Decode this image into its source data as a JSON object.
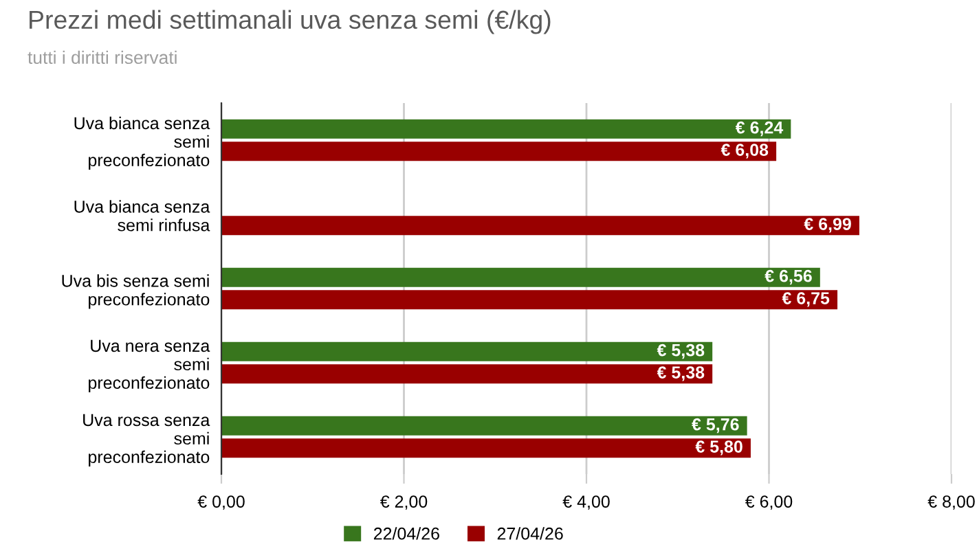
{
  "chart_data": {
    "type": "bar",
    "orientation": "horizontal",
    "title": "Prezzi medi settimanali uva senza semi (€/kg)",
    "subtitle": "tutti i diritti riservati",
    "categories": [
      "Uva bianca senza\nsemi\npreconfezionato",
      "Uva bianca senza\nsemi rinfusa",
      "Uva bis senza semi\npreconfezionato",
      "Uva nera senza\nsemi\npreconfezionato",
      "Uva rossa senza\nsemi\npreconfezionato"
    ],
    "series": [
      {
        "name": "22/04/26",
        "color": "#38761d",
        "values": [
          6.24,
          null,
          6.56,
          5.38,
          5.76
        ],
        "value_labels": [
          "€ 6,24",
          null,
          "€ 6,56",
          "€ 5,38",
          "€ 5,76"
        ]
      },
      {
        "name": "27/04/26",
        "color": "#990000",
        "values": [
          6.08,
          6.99,
          6.75,
          5.38,
          5.8
        ],
        "value_labels": [
          "€ 6,08",
          "€ 6,99",
          "€ 6,75",
          "€ 5,38",
          "€ 5,80"
        ]
      }
    ],
    "xlim": [
      0,
      8
    ],
    "xticks": [
      {
        "value": 0,
        "label": "€ 0,00"
      },
      {
        "value": 2,
        "label": "€ 2,00"
      },
      {
        "value": 4,
        "label": "€ 4,00"
      },
      {
        "value": 6,
        "label": "€ 6,00"
      },
      {
        "value": 8,
        "label": "€ 8,00"
      }
    ],
    "grid": "x",
    "legend": "bottom"
  }
}
